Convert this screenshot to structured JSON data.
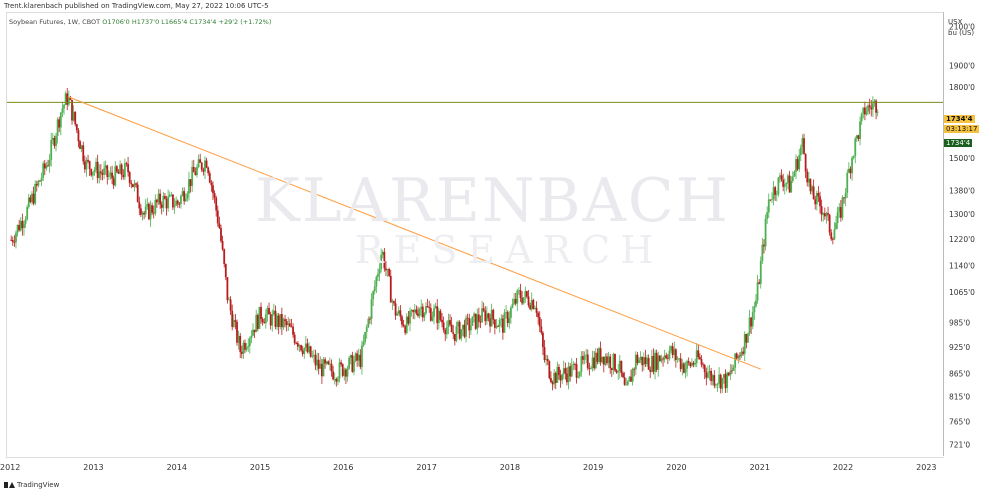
{
  "header": {
    "publisher": "Trent.klarenbach published on TradingView.com, May 27, 2022 10:06 UTC-5"
  },
  "legend": {
    "symbol": "Soybean Futures, 1W, CBOT",
    "ohlc": "O1706'0 H1737'0 L1665'4 C1734'4 +29'2 (+1.72%)"
  },
  "axis_units": {
    "currency": "USX",
    "unit": "bu (US)"
  },
  "watermark": {
    "line1": "KLARENBACH",
    "line2": "RESEARCH"
  },
  "price_badges": {
    "last_price": "1734'4",
    "countdown": "03:13:17",
    "close_price": "1734'4",
    "colors": {
      "last": "#f5c242",
      "close": "#1b5e20"
    }
  },
  "footer": {
    "brand": "TradingView"
  },
  "colors": {
    "up": "#4caf50",
    "down": "#b71c1c",
    "trendline": "#ff9a3c",
    "hline": "#7a8b1a"
  },
  "chart_data": {
    "type": "line",
    "chart_style": "candlestick",
    "title": "Soybean Futures, 1W, CBOT",
    "xlabel": "",
    "ylabel": "USX bu (US)",
    "x_ticks": [
      "2012",
      "2013",
      "2014",
      "2015",
      "2016",
      "2017",
      "2018",
      "2019",
      "2020",
      "2021",
      "2022",
      "2023"
    ],
    "y_ticks": [
      "2100'0",
      "1900'0",
      "1800'0",
      "1500'0",
      "1380'0",
      "1300'0",
      "1220'0",
      "1140'0",
      "1065'0",
      "985'0",
      "925'0",
      "865'0",
      "815'0",
      "765'0",
      "721'0"
    ],
    "y_scale": "log",
    "ylim": [
      700,
      2180
    ],
    "grid": false,
    "series": [
      {
        "values_x": [
          2012.0,
          2012.2,
          2012.45,
          2012.6,
          2012.68,
          2012.9,
          2013.2,
          2013.4,
          2013.6,
          2013.8,
          2014.0,
          2014.2,
          2014.35,
          2014.5,
          2014.6,
          2014.7,
          2014.75,
          2015.0,
          2015.3,
          2015.5,
          2015.7,
          2015.9,
          2016.2,
          2016.45,
          2016.6,
          2016.75,
          2016.9,
          2017.1,
          2017.3,
          2017.5,
          2017.7,
          2017.9,
          2018.1,
          2018.3,
          2018.4,
          2018.5,
          2018.7,
          2018.9,
          2019.1,
          2019.3,
          2019.38,
          2019.5,
          2019.7,
          2019.9,
          2020.1,
          2020.25,
          2020.4,
          2020.6,
          2020.8,
          2020.95,
          2021.1,
          2021.25,
          2021.35,
          2021.5,
          2021.6,
          2021.75,
          2021.85,
          2021.95,
          2022.1,
          2022.25,
          2022.41
        ],
        "values_y": [
          1220,
          1320,
          1500,
          1700,
          1760,
          1480,
          1430,
          1460,
          1300,
          1350,
          1340,
          1450,
          1500,
          1260,
          1050,
          960,
          920,
          1010,
          980,
          930,
          880,
          870,
          900,
          1190,
          1020,
          980,
          1030,
          1010,
          960,
          980,
          1010,
          980,
          1060,
          1040,
          900,
          860,
          870,
          890,
          910,
          880,
          820,
          900,
          890,
          920,
          880,
          900,
          860,
          850,
          940,
          1050,
          1360,
          1430,
          1400,
          1560,
          1370,
          1320,
          1240,
          1300,
          1520,
          1700,
          1734.5
        ]
      }
    ],
    "horizontal_line": 1734.5,
    "trendline": {
      "start": {
        "x": 2012.68,
        "y": 1760
      },
      "end": {
        "x": 2020.95,
        "y": 880
      }
    }
  }
}
